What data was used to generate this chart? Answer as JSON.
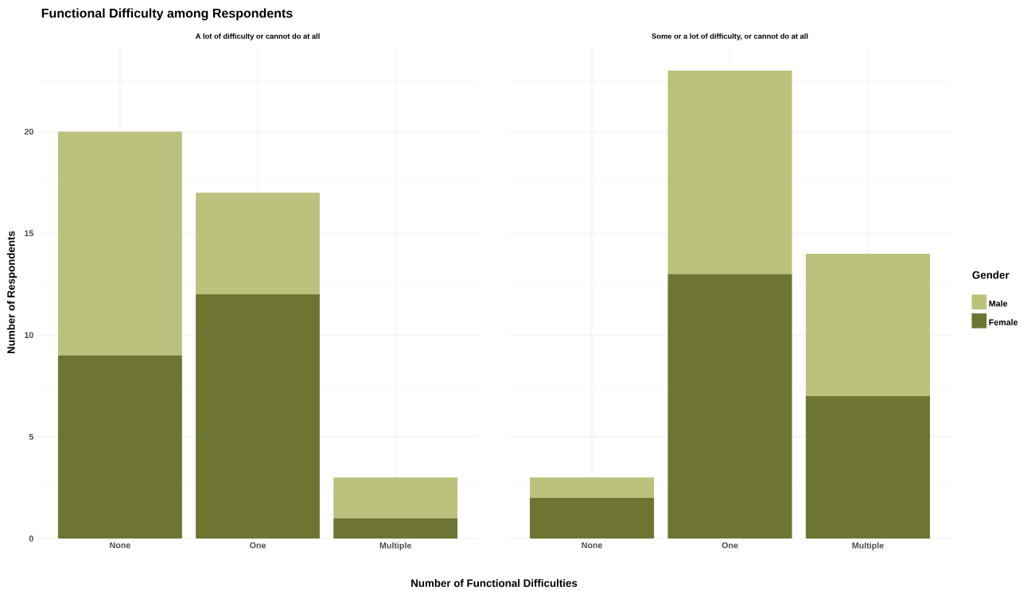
{
  "chart_data": [
    {
      "type": "bar",
      "title": "Functional Difficulty among Respondents",
      "subtitle": "A lot of difficulty or cannot do at all",
      "xlabel": "Number of Functional Difficulties",
      "ylabel": "Number of Respondents",
      "categories": [
        "None",
        "One",
        "Multiple"
      ],
      "stacked": true,
      "ylim": [
        0,
        24.2
      ],
      "yticks": [
        0,
        5,
        10,
        15,
        20
      ],
      "grid": true,
      "legend": false,
      "series": [
        {
          "color": "#6e7533",
          "values": [
            9,
            12,
            1
          ]
        },
        {
          "color": "#bcc17e",
          "values": [
            11,
            5,
            2
          ]
        }
      ]
    },
    {
      "type": "bar",
      "subtitle": "Some or a lot of difficulty, or cannot do at all",
      "legend_title": "Gender",
      "categories": [
        "None",
        "One",
        "Multiple"
      ],
      "stacked": true,
      "ylim": [
        0,
        24.2
      ],
      "yticks": [
        0,
        5,
        10,
        15,
        20
      ],
      "grid": true,
      "legend": "right",
      "tick_labels": "x",
      "series": [
        {
          "name": "Female",
          "color": "#6e7533",
          "values": [
            2,
            13,
            7
          ]
        },
        {
          "name": "Male",
          "color": "#bcc17e",
          "values": [
            1,
            10,
            7
          ]
        }
      ]
    }
  ]
}
